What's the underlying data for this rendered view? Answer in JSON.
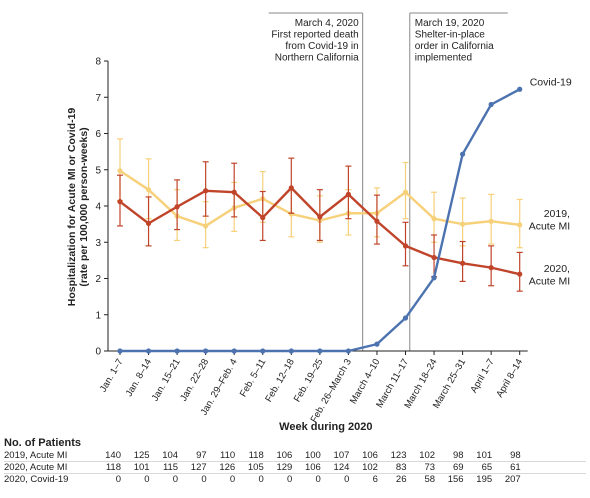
{
  "chart_data": {
    "type": "line",
    "xlabel": "Week during 2020",
    "ylabel_lines": [
      "Hospitalization for Acute MI or Covid-19",
      "(rate per 100,000 person-weeks)"
    ],
    "ylim": [
      0,
      8
    ],
    "yticks": [
      "0",
      "1",
      "2",
      "3",
      "4",
      "5",
      "6",
      "7",
      "8"
    ],
    "grid": false,
    "categories": [
      "Jan. 1–7",
      "Jan. 8–14",
      "Jan. 15–21",
      "Jan. 22–28",
      "Jan. 29–Feb. 4",
      "Feb. 5–11",
      "Feb. 12–18",
      "Feb. 19–25",
      "Feb. 26–March 3",
      "March 4–10",
      "March 11–17",
      "March 18–24",
      "March 25–31",
      "April 1–7",
      "April 8–14"
    ],
    "series": [
      {
        "label_lines": [
          "2019,",
          "Acute MI"
        ],
        "color": "#f7d07a",
        "values": [
          4.97,
          4.45,
          3.72,
          3.45,
          3.95,
          4.2,
          3.78,
          3.6,
          3.8,
          3.8,
          4.38,
          3.65,
          3.5,
          3.58,
          3.48
        ],
        "err_low": [
          4.15,
          3.65,
          3.05,
          2.85,
          3.3,
          3.55,
          3.15,
          3.0,
          3.2,
          3.15,
          3.65,
          3.0,
          2.9,
          2.95,
          2.85
        ],
        "err_high": [
          5.85,
          5.3,
          4.45,
          4.12,
          4.65,
          4.95,
          4.45,
          4.28,
          4.45,
          4.5,
          5.2,
          4.38,
          4.22,
          4.32,
          4.18
        ]
      },
      {
        "label_lines": [
          "2020,",
          "Acute MI"
        ],
        "color": "#c0442a",
        "values": [
          4.12,
          3.52,
          3.98,
          4.42,
          4.38,
          3.68,
          4.5,
          3.7,
          4.32,
          3.58,
          2.9,
          2.58,
          2.42,
          2.3,
          2.12
        ],
        "err_low": [
          3.45,
          2.9,
          3.35,
          3.72,
          3.7,
          3.05,
          3.8,
          3.05,
          3.65,
          2.95,
          2.35,
          2.05,
          1.92,
          1.8,
          1.65
        ],
        "err_high": [
          4.85,
          4.25,
          4.72,
          5.22,
          5.18,
          4.4,
          5.32,
          4.45,
          5.1,
          4.3,
          3.55,
          3.2,
          3.02,
          2.9,
          2.72
        ]
      },
      {
        "label_lines": [
          "Covid-19"
        ],
        "color": "#4c73b0",
        "values": [
          0,
          0,
          0,
          0,
          0,
          0,
          0,
          0,
          0,
          0.19,
          0.91,
          2.02,
          5.43,
          6.8,
          7.22
        ]
      }
    ],
    "annotations": [
      {
        "after_category_index": 8.5,
        "lines": [
          "March 4, 2020",
          "First reported death",
          "from Covid-19 in",
          "Northern California"
        ],
        "align": "right"
      },
      {
        "after_category_index": 10.15,
        "lines": [
          "March 19, 2020",
          "Shelter-in-place",
          "order in California",
          "implemented"
        ],
        "align": "left"
      }
    ]
  },
  "table": {
    "title": "No. of Patients",
    "rows": [
      {
        "label": "2019, Acute MI",
        "values": [
          "140",
          "125",
          "104",
          "97",
          "110",
          "118",
          "106",
          "100",
          "107",
          "106",
          "123",
          "102",
          "98",
          "101",
          "98"
        ]
      },
      {
        "label": "2020, Acute MI",
        "values": [
          "118",
          "101",
          "115",
          "127",
          "126",
          "105",
          "129",
          "106",
          "124",
          "102",
          "83",
          "73",
          "69",
          "65",
          "61"
        ]
      },
      {
        "label": "2020, Covid-19",
        "values": [
          "0",
          "0",
          "0",
          "0",
          "0",
          "0",
          "0",
          "0",
          "0",
          "6",
          "26",
          "58",
          "156",
          "195",
          "207"
        ]
      }
    ]
  }
}
